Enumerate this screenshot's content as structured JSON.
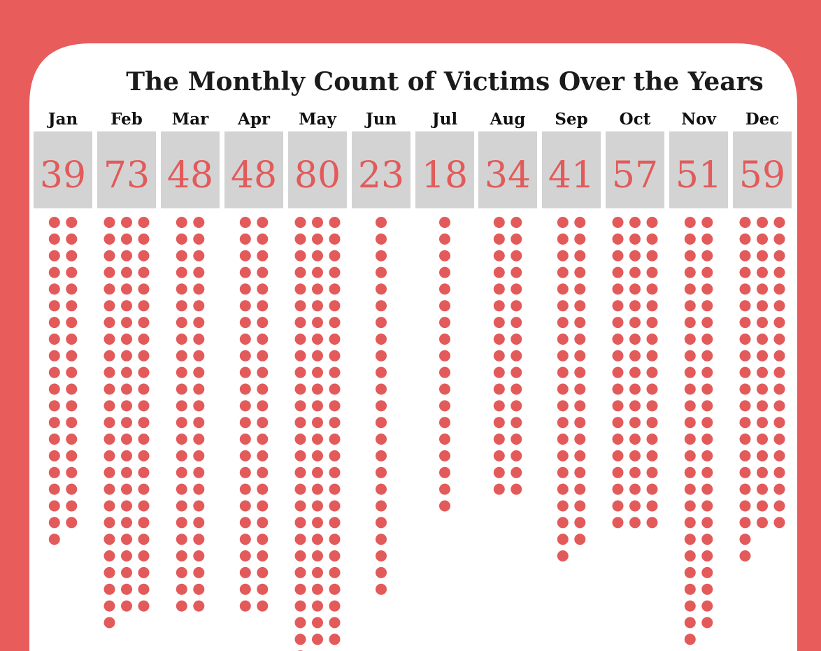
{
  "chart_data": {
    "type": "dot-matrix",
    "title": "The Monthly Count of Victims Over the Years",
    "categories": [
      "Jan",
      "Feb",
      "Mar",
      "Apr",
      "May",
      "Jun",
      "Jul",
      "Aug",
      "Sep",
      "Oct",
      "Nov",
      "Dec"
    ],
    "values": [
      39,
      73,
      48,
      48,
      80,
      23,
      18,
      34,
      41,
      57,
      51,
      59
    ],
    "colors": {
      "frame": "#e85c5c",
      "panel": "#ffffff",
      "count_box": "#d3d3d3",
      "count_text": "#e35a5a",
      "dot": "#e35a5a",
      "text": "#111111"
    }
  }
}
